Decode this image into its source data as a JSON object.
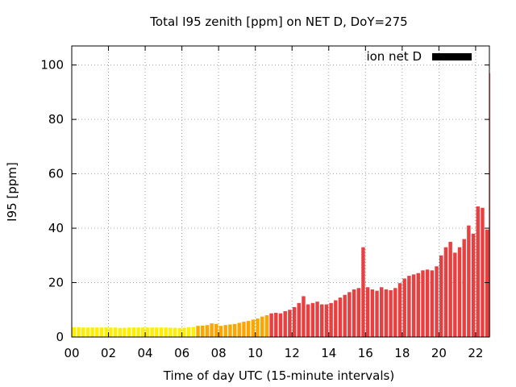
{
  "chart_data": {
    "type": "bar",
    "title": "Total I95 zenith [ppm] on NET D, DoY=275",
    "xlabel": "Time of day UTC (15-minute intervals)",
    "ylabel": "I95 [ppm]",
    "xlim": [
      0,
      22.75
    ],
    "ylim": [
      0,
      107
    ],
    "x_ticks": [
      0,
      2,
      4,
      6,
      8,
      10,
      12,
      14,
      16,
      18,
      20,
      22
    ],
    "x_tick_labels": [
      "00",
      "02",
      "04",
      "06",
      "08",
      "10",
      "12",
      "14",
      "16",
      "18",
      "20",
      "22"
    ],
    "y_ticks": [
      0,
      20,
      40,
      60,
      80,
      100
    ],
    "y_tick_labels": [
      "0",
      "20",
      "40",
      "60",
      "80",
      "100"
    ],
    "grid": true,
    "legend": {
      "position": "top-right",
      "label": "ion net D",
      "color": "#000000"
    },
    "interval_hours": 0.25,
    "color_thresholds": [
      {
        "max": 4,
        "color": "#ffee00"
      },
      {
        "max": 8,
        "color": "#ffa500"
      },
      {
        "max": 1000,
        "color": "#e84040"
      }
    ],
    "values": [
      3.6,
      3.6,
      3.5,
      3.5,
      3.5,
      3.5,
      3.5,
      3.5,
      3.5,
      3.5,
      3.3,
      3.4,
      3.5,
      3.5,
      3.5,
      3.5,
      3.5,
      3.5,
      3.5,
      3.5,
      3.5,
      3.4,
      3.4,
      3.3,
      3.4,
      3.6,
      3.7,
      4.1,
      4.2,
      4.4,
      5.0,
      4.8,
      4.1,
      4.4,
      4.6,
      4.8,
      5.2,
      5.6,
      5.9,
      6.4,
      6.8,
      7.5,
      8.0,
      8.7,
      8.9,
      8.7,
      9.5,
      10.0,
      11.0,
      12.5,
      15.0,
      12.0,
      12.5,
      13.0,
      12.0,
      12.0,
      12.5,
      13.5,
      14.5,
      15.5,
      16.5,
      17.5,
      18.0,
      33.0,
      18.3,
      17.5,
      17.0,
      18.3,
      17.5,
      17.2,
      18.0,
      19.8,
      21.5,
      22.5,
      23.0,
      23.5,
      24.5,
      24.8,
      24.5,
      26.0,
      30.0,
      33.0,
      35.0,
      31.0,
      33.0,
      36.0,
      41.0,
      38.0,
      48.0,
      47.5,
      39.5,
      97.0
    ]
  }
}
